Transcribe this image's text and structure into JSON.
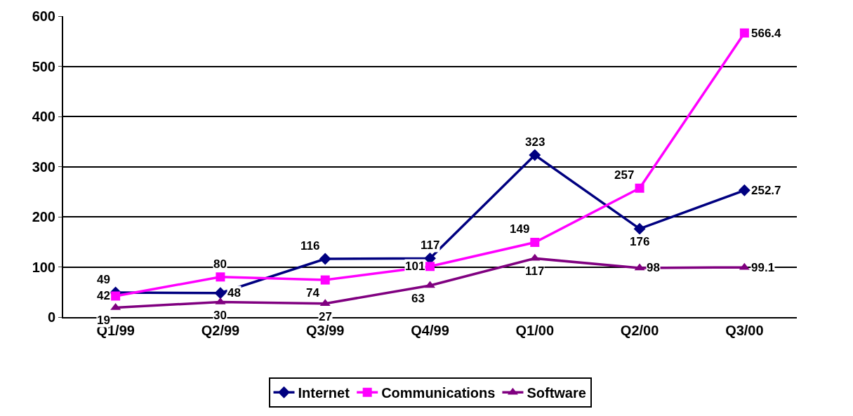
{
  "chart_data": {
    "type": "line",
    "categories": [
      "Q1/99",
      "Q2/99",
      "Q3/99",
      "Q4/99",
      "Q1/00",
      "Q2/00",
      "Q3/00"
    ],
    "series": [
      {
        "name": "Internet",
        "color": "#000080",
        "marker": "diamond",
        "values": [
          49,
          48,
          116,
          117,
          323,
          176,
          252.7
        ]
      },
      {
        "name": "Communications",
        "color": "#ff00ff",
        "marker": "square",
        "values": [
          42,
          80,
          74,
          101,
          149,
          257,
          566.4
        ]
      },
      {
        "name": "Software",
        "color": "#800080",
        "marker": "triangle",
        "values": [
          19,
          30,
          27,
          63,
          117,
          98,
          99.1
        ]
      }
    ],
    "ylim": [
      0,
      600
    ],
    "yticks": [
      0,
      100,
      200,
      300,
      400,
      500,
      600
    ],
    "grid": "y",
    "legend": "bottom",
    "data_labels": true,
    "line_style": "solid"
  }
}
